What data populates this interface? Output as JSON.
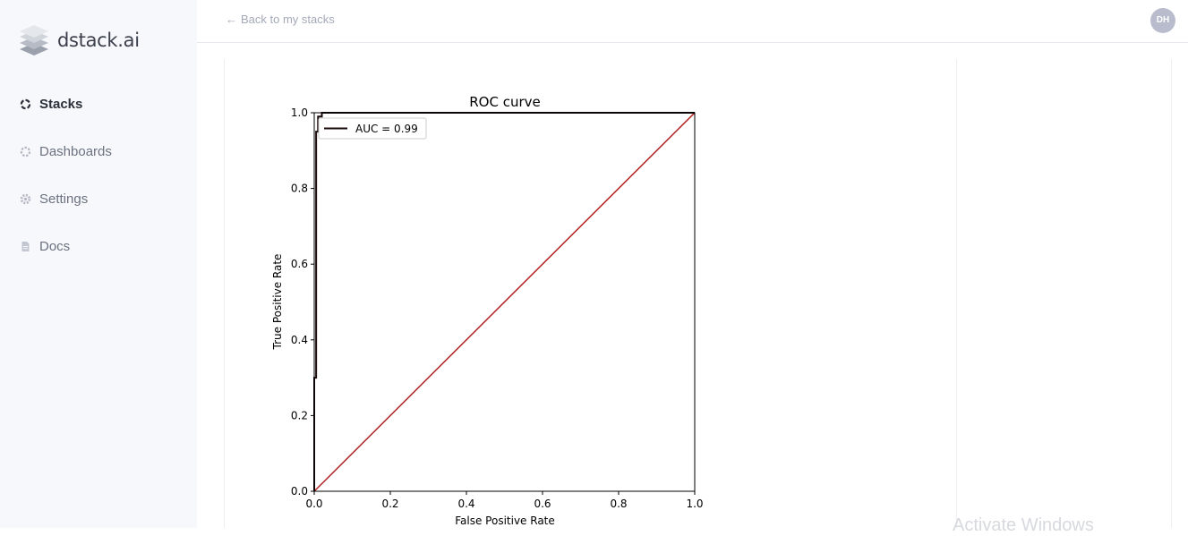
{
  "app": {
    "name": "dstack.ai"
  },
  "sidebar": {
    "items": [
      {
        "label": "Stacks",
        "icon": "stacks-icon",
        "active": true
      },
      {
        "label": "Dashboards",
        "icon": "dashboards-icon",
        "active": false
      },
      {
        "label": "Settings",
        "icon": "gear-icon",
        "active": false
      },
      {
        "label": "Docs",
        "icon": "document-icon",
        "active": false
      }
    ]
  },
  "header": {
    "back_label": "Back to my stacks",
    "avatar_initials": "DH"
  },
  "watermark": "Activate Windows",
  "chart_data": {
    "type": "line",
    "title": "ROC curve",
    "xlabel": "False Positive Rate",
    "ylabel": "True Positive Rate",
    "xlim": [
      0.0,
      1.0
    ],
    "ylim": [
      0.0,
      1.0
    ],
    "xticks": [
      "0.0",
      "0.2",
      "0.4",
      "0.6",
      "0.8",
      "1.0"
    ],
    "yticks": [
      "0.0",
      "0.2",
      "0.4",
      "0.6",
      "0.8",
      "1.0"
    ],
    "grid": false,
    "legend": "top-left",
    "series": [
      {
        "name": "AUC = 0.99",
        "color": "#1a0a0a",
        "x": [
          0.0,
          0.0,
          0.005,
          0.005,
          0.01,
          0.01,
          0.02,
          0.02,
          1.0
        ],
        "y": [
          0.0,
          0.3,
          0.3,
          0.95,
          0.95,
          0.99,
          0.99,
          1.0,
          1.0
        ]
      },
      {
        "color": "#b22222",
        "x": [
          0.0,
          1.0
        ],
        "y": [
          0.0,
          1.0
        ]
      }
    ]
  }
}
